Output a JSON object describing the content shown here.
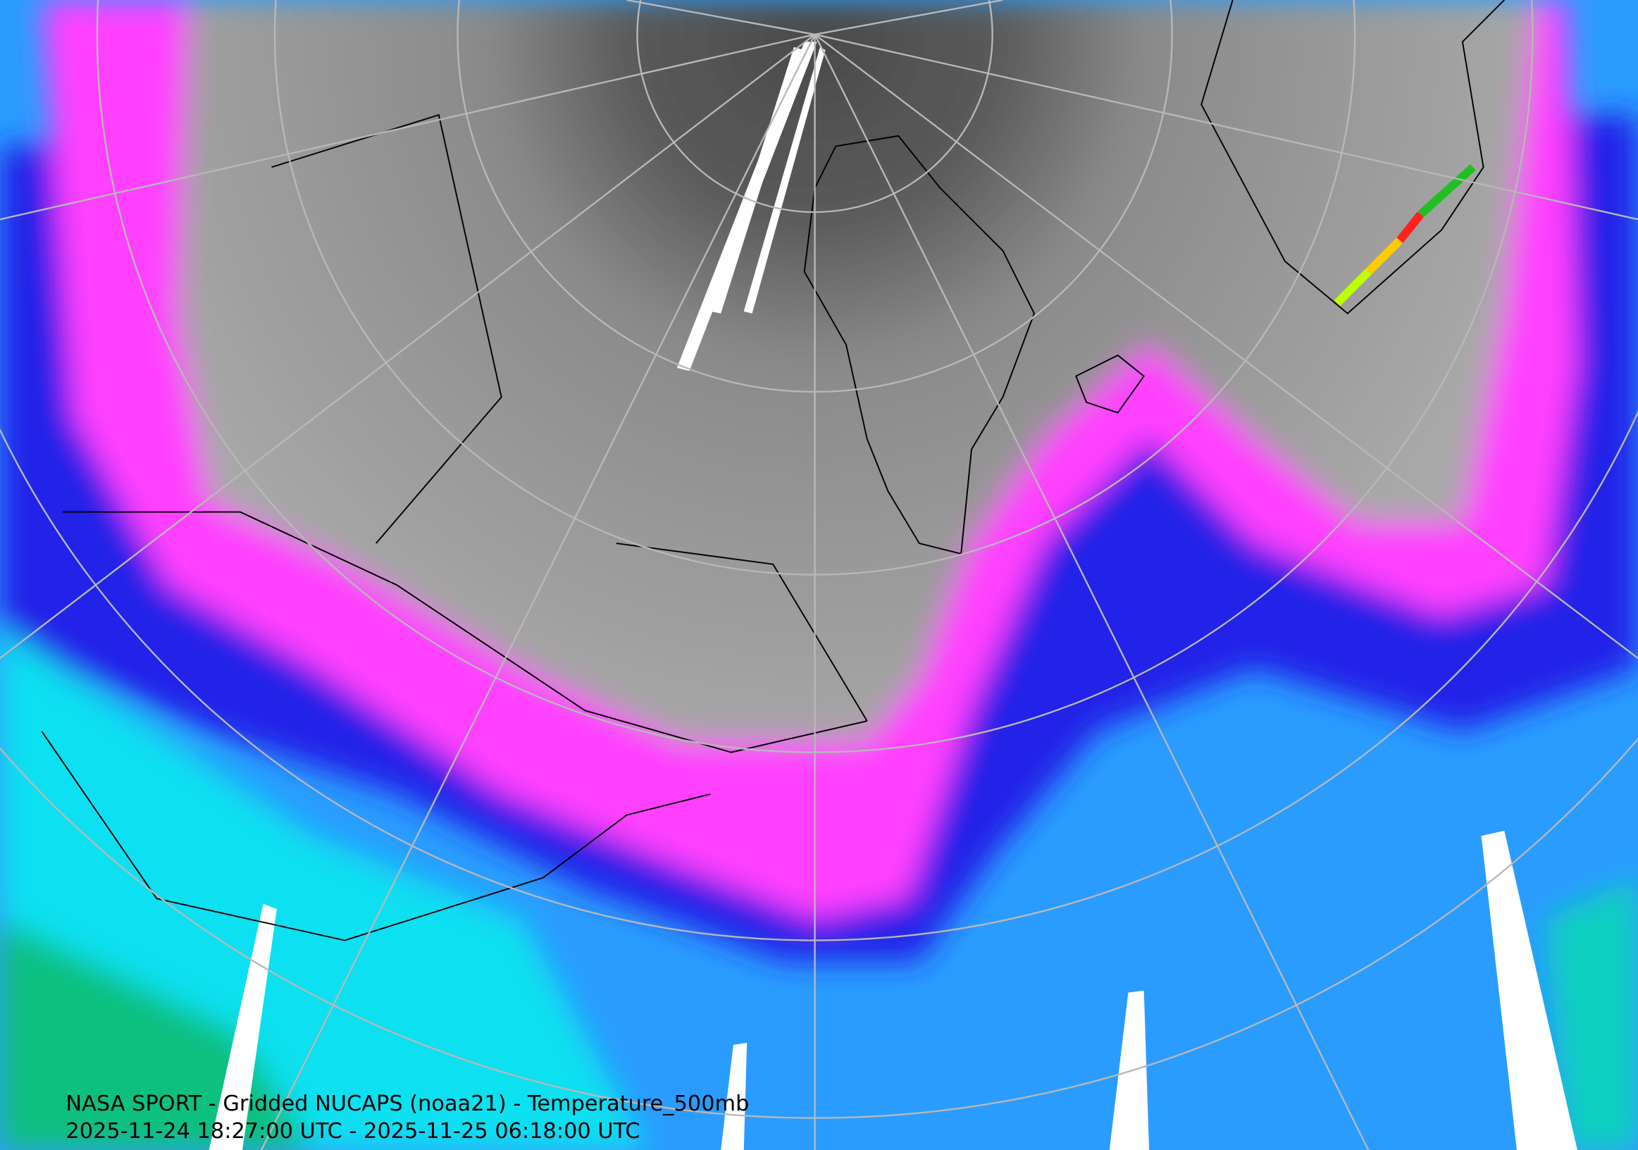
{
  "caption": {
    "line1": "NASA SPORT - Gridded NUCAPS (noaa21) - Temperature_500mb",
    "line2": "2025-11-24 18:27:00 UTC - 2025-11-25 06:18:00 UTC"
  }
}
